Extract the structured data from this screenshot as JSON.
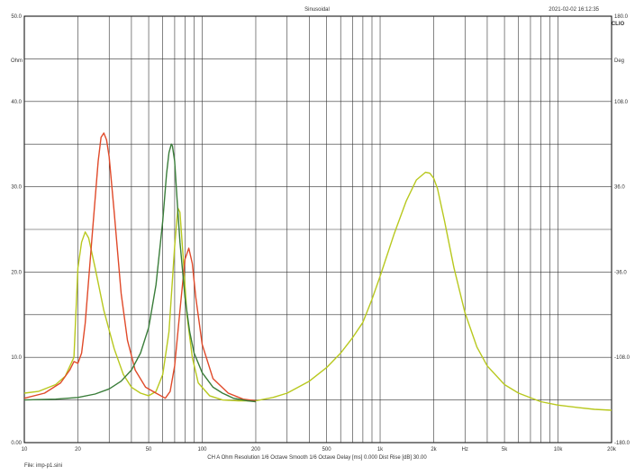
{
  "header": {
    "title": "Sinusoidal",
    "timestamp": "2021-02-02 16:12:35",
    "logo": "CLIO"
  },
  "footer": {
    "status": "CH A   Ohm   Resolution 1/6 Octave   Smooth 1/6 Octave   Delay [ms] 0.000   Dist Rise [dB] 30.00",
    "file": "File: imp-p1.sini"
  },
  "chart_data": {
    "type": "line",
    "title": "Sinusoidal",
    "xscale": "log",
    "xlim": [
      10,
      20000
    ],
    "ylim": [
      0,
      50
    ],
    "ylim_right": [
      -180,
      180
    ],
    "grid": true,
    "ylabel": "Ohm",
    "ylabel_right": "Deg",
    "y_ticks": [
      "0.00",
      "10.0",
      "20.0",
      "30.0",
      "40.0",
      "50.0"
    ],
    "y_right_ticks": [
      "-180.0",
      "-108.0",
      "-36.0",
      "36.0",
      "108.0",
      "180.0"
    ],
    "x_ticks": [
      {
        "v": 10,
        "label": "10"
      },
      {
        "v": 20,
        "label": "20"
      },
      {
        "v": 50,
        "label": "50"
      },
      {
        "v": 100,
        "label": "100"
      },
      {
        "v": 200,
        "label": "200"
      },
      {
        "v": 500,
        "label": "500"
      },
      {
        "v": 1000,
        "label": "1k"
      },
      {
        "v": 2000,
        "label": "2k"
      },
      {
        "v": 3000,
        "label": "Hz"
      },
      {
        "v": 5000,
        "label": "5k"
      },
      {
        "v": 10000,
        "label": "10k"
      },
      {
        "v": 20000,
        "label": "20k"
      }
    ],
    "series": [
      {
        "color": "#b8c81e",
        "x": [
          10,
          12,
          15,
          17,
          19,
          20,
          21,
          22,
          23,
          25,
          28,
          32,
          36,
          40,
          45,
          50,
          55,
          60,
          65,
          70,
          73,
          75,
          78,
          82,
          88,
          95,
          110,
          130,
          160,
          200,
          250,
          300,
          400,
          500,
          600,
          700,
          800,
          900,
          1000,
          1200,
          1400,
          1600,
          1800,
          1900,
          2000,
          2100,
          2300,
          2600,
          3000,
          3500,
          4000,
          5000,
          6000,
          8000,
          10000,
          13000,
          16000,
          20000
        ],
        "y": [
          5.8,
          6.0,
          6.8,
          7.8,
          10.0,
          20.5,
          23.5,
          24.7,
          24.0,
          20.5,
          15.5,
          11.0,
          8.0,
          6.5,
          5.8,
          5.5,
          6.0,
          8.0,
          13.0,
          23.0,
          27.5,
          27.0,
          22.0,
          15.0,
          10.0,
          7.0,
          5.5,
          5.0,
          4.9,
          4.9,
          5.3,
          5.8,
          7.2,
          8.8,
          10.5,
          12.3,
          14.1,
          16.8,
          19.5,
          24.5,
          28.3,
          30.8,
          31.7,
          31.6,
          31.0,
          29.8,
          26.0,
          20.5,
          15.2,
          11.2,
          9.0,
          6.8,
          5.8,
          4.8,
          4.4,
          4.1,
          3.9,
          3.8
        ]
      },
      {
        "color": "#e04a2a",
        "x": [
          10,
          13,
          16,
          18,
          19,
          20,
          21,
          22,
          24,
          26,
          27,
          28,
          29,
          30,
          32,
          35,
          38,
          42,
          48,
          55,
          62,
          66,
          70,
          75,
          80,
          84,
          88,
          92,
          100,
          115,
          140,
          170,
          200
        ],
        "y": [
          5.2,
          5.8,
          7.0,
          8.5,
          9.5,
          9.3,
          10.5,
          14.0,
          24.0,
          33.0,
          35.8,
          36.3,
          35.5,
          33.5,
          27.0,
          17.5,
          12.0,
          8.5,
          6.5,
          5.8,
          5.2,
          6.0,
          9.0,
          15.5,
          21.5,
          22.8,
          21.0,
          17.0,
          11.5,
          7.5,
          5.8,
          5.1,
          4.9
        ]
      },
      {
        "color": "#3a7d3a",
        "x": [
          10,
          15,
          20,
          25,
          30,
          35,
          40,
          45,
          50,
          55,
          60,
          63,
          65,
          67,
          68,
          70,
          72,
          75,
          80,
          85,
          90,
          100,
          115,
          130,
          150,
          180,
          200
        ],
        "y": [
          5.0,
          5.1,
          5.3,
          5.7,
          6.3,
          7.2,
          8.5,
          10.5,
          13.5,
          18.5,
          26.0,
          31.5,
          34.0,
          35.0,
          34.8,
          33.0,
          29.0,
          23.5,
          17.0,
          13.0,
          10.5,
          8.2,
          6.5,
          5.8,
          5.2,
          4.9,
          4.8
        ]
      }
    ]
  }
}
